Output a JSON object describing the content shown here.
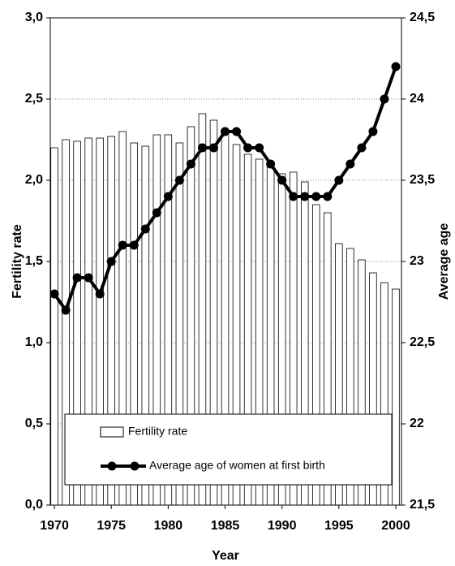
{
  "chart_data": {
    "type": "bar",
    "x": [
      1970,
      1971,
      1972,
      1973,
      1974,
      1975,
      1976,
      1977,
      1978,
      1979,
      1980,
      1981,
      1982,
      1983,
      1984,
      1985,
      1986,
      1987,
      1988,
      1989,
      1990,
      1991,
      1992,
      1993,
      1994,
      1995,
      1996,
      1997,
      1998,
      1999,
      2000
    ],
    "series": [
      {
        "name": "Fertility rate",
        "type": "bar",
        "color": "#ffffff",
        "values": [
          2.2,
          2.25,
          2.24,
          2.26,
          2.26,
          2.27,
          2.3,
          2.23,
          2.21,
          2.28,
          2.28,
          2.23,
          2.33,
          2.41,
          2.37,
          2.29,
          2.22,
          2.16,
          2.13,
          2.08,
          2.04,
          2.05,
          1.99,
          1.85,
          1.8,
          1.61,
          1.58,
          1.51,
          1.43,
          1.37,
          1.33
        ]
      },
      {
        "name": "Average age of women at first birth",
        "type": "line",
        "axis": "y2",
        "color": "#000000",
        "values": [
          22.8,
          22.7,
          22.9,
          22.9,
          22.8,
          23.0,
          23.1,
          23.1,
          23.2,
          23.3,
          23.4,
          23.5,
          23.6,
          23.7,
          23.7,
          23.8,
          23.8,
          23.7,
          23.7,
          23.6,
          23.5,
          23.4,
          23.4,
          23.4,
          23.4,
          23.5,
          23.6,
          23.7,
          23.8,
          24.0,
          24.2
        ]
      }
    ],
    "xlabel": "Year",
    "ylabel": "Fertility rate",
    "y2label": "Average age",
    "xlim": [
      1969.64,
      2000.5
    ],
    "xticks": [
      1970,
      1975,
      1980,
      1985,
      1990,
      1995,
      2000
    ],
    "ylim": [
      0,
      3
    ],
    "yticks": [
      {
        "value": 0,
        "label": "0,0"
      },
      {
        "value": 0.5,
        "label": "0,5"
      },
      {
        "value": 1,
        "label": "1,0"
      },
      {
        "value": 1.5,
        "label": "1,5"
      },
      {
        "value": 2,
        "label": "2,0"
      },
      {
        "value": 2.5,
        "label": "2,5"
      },
      {
        "value": 3,
        "label": "3,0"
      }
    ],
    "y2lim": [
      21.5,
      24.5
    ],
    "y2ticks": [
      {
        "value": 21.5,
        "label": "21,5"
      },
      22,
      {
        "value": 22.5,
        "label": "22,5"
      },
      23,
      {
        "value": 23.5,
        "label": "23,5"
      },
      24,
      {
        "value": 24.5,
        "label": "24,5"
      }
    ],
    "grid": true,
    "legend": "bottom"
  }
}
